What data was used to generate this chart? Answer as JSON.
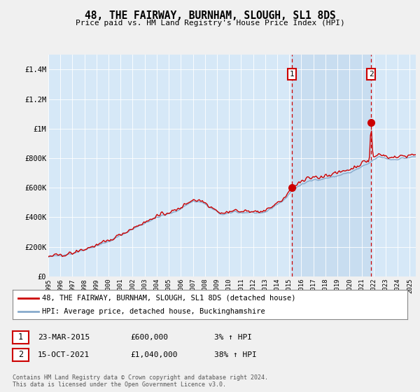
{
  "title": "48, THE FAIRWAY, BURNHAM, SLOUGH, SL1 8DS",
  "subtitle": "Price paid vs. HM Land Registry's House Price Index (HPI)",
  "ylim": [
    0,
    1500000
  ],
  "yticks": [
    0,
    200000,
    400000,
    600000,
    800000,
    1000000,
    1200000,
    1400000
  ],
  "ytick_labels": [
    "£0",
    "£200K",
    "£400K",
    "£600K",
    "£800K",
    "£1M",
    "£1.2M",
    "£1.4M"
  ],
  "background_color": "#d6e8f7",
  "highlight_color": "#c8ddf0",
  "fig_bg_color": "#f0f0f0",
  "line1_color": "#cc0000",
  "line2_color": "#88aacc",
  "sale1_x": 2015.23,
  "sale1_y": 600000,
  "sale2_x": 2021.79,
  "sale2_y": 1040000,
  "vline_color": "#cc0000",
  "legend_line1": "48, THE FAIRWAY, BURNHAM, SLOUGH, SL1 8DS (detached house)",
  "legend_line2": "HPI: Average price, detached house, Buckinghamshire",
  "table_row1": [
    "1",
    "23-MAR-2015",
    "£600,000",
    "3% ↑ HPI"
  ],
  "table_row2": [
    "2",
    "15-OCT-2021",
    "£1,040,000",
    "38% ↑ HPI"
  ],
  "footer": "Contains HM Land Registry data © Crown copyright and database right 2024.\nThis data is licensed under the Open Government Licence v3.0.",
  "xmin": 1995,
  "xmax": 2025.5
}
